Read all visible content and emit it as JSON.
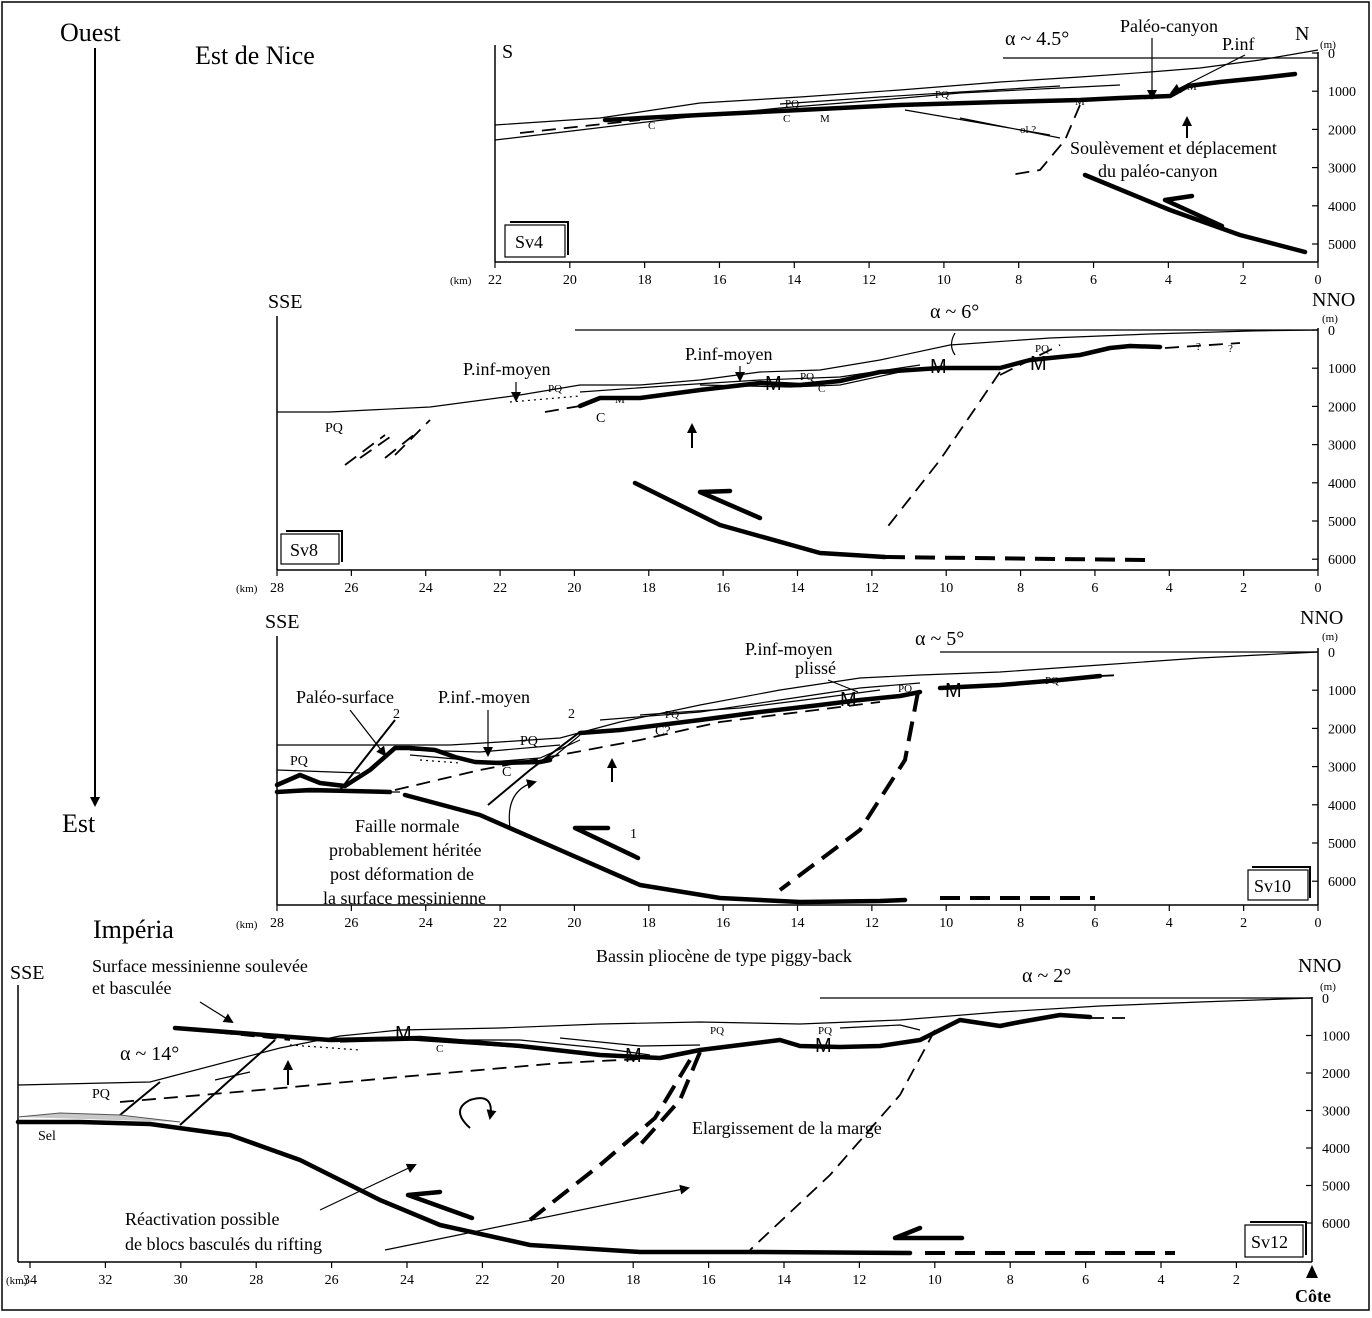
{
  "orientation": {
    "west": "Ouest",
    "east": "Est"
  },
  "regions": {
    "nice": "Est de Nice",
    "imperia": "Impéria"
  },
  "units": {
    "km": "(km)",
    "m": "(m)"
  },
  "coast": "Côte",
  "colors": {
    "line": "#000000",
    "salt": "#c8c8c8"
  },
  "panels": [
    {
      "id": "Sv4",
      "label": "Sv4",
      "left": "S",
      "right": "N",
      "km_ticks": [
        "22",
        "20",
        "18",
        "16",
        "14",
        "12",
        "10",
        "8",
        "6",
        "4",
        "2",
        "0"
      ],
      "depth_ticks": [
        "0",
        "1000",
        "2000",
        "3000",
        "4000",
        "5000"
      ],
      "alpha": "α ~ 4.5°",
      "annotations": {
        "canyon": "Paléo-canyon",
        "pinf": "P.inf",
        "uplift1": "Soulèvement et déplacement",
        "uplift2": "du paléo-canyon",
        "pq1": "PQ",
        "pq2": "PQ",
        "m1": "M",
        "m2": "M",
        "m3": "M",
        "c1": "C",
        "c2": "C",
        "ol": "ol ?"
      }
    },
    {
      "id": "Sv8",
      "label": "Sv8",
      "left": "SSE",
      "right": "NNO",
      "km_ticks": [
        "28",
        "26",
        "24",
        "22",
        "20",
        "18",
        "16",
        "14",
        "12",
        "10",
        "8",
        "6",
        "4",
        "2",
        "0"
      ],
      "depth_ticks": [
        "0",
        "1000",
        "2000",
        "3000",
        "4000",
        "5000",
        "6000"
      ],
      "alpha": "α ~ 6°",
      "annotations": {
        "pinf1": "P.inf-moyen",
        "pinf2": "P.inf-moyen",
        "pq1": "PQ",
        "pq2": "PQ",
        "pq3": "PQ",
        "pq4": "PQ",
        "m1": "M",
        "m2": "M",
        "m3": "M",
        "m4": "M",
        "c1": "C",
        "c2": "C",
        "q1": "?",
        "q2": "?"
      }
    },
    {
      "id": "Sv10",
      "label": "Sv10",
      "left": "SSE",
      "right": "NNO",
      "km_ticks": [
        "28",
        "26",
        "24",
        "22",
        "20",
        "18",
        "16",
        "14",
        "12",
        "10",
        "8",
        "6",
        "4",
        "2",
        "0"
      ],
      "depth_ticks": [
        "0",
        "1000",
        "2000",
        "3000",
        "4000",
        "5000",
        "6000"
      ],
      "alpha": "α ~ 5°",
      "annotations": {
        "paleo": "Paléo-surface",
        "pinf": "P.inf.-moyen",
        "pinf_pl1": "P.inf-moyen",
        "pinf_pl2": "plissé",
        "faille1": "Faille normale",
        "faille2": "probablement héritée",
        "faille3": "post déformation de",
        "faille4": "la surface messinienne",
        "piggy": "Bassin pliocène de type piggy-back",
        "n2a": "2",
        "n2b": "2",
        "n1": "1",
        "pq1": "PQ",
        "pq2": "PQ",
        "pq3": "PQ",
        "pq4": "PQ",
        "pq5": "PQ",
        "m1": "M",
        "m2": "M",
        "c1": "C",
        "c2": "C?"
      }
    },
    {
      "id": "Sv12",
      "label": "Sv12",
      "left": "SSE",
      "right": "NNO",
      "km_ticks": [
        "34",
        "32",
        "30",
        "28",
        "26",
        "24",
        "22",
        "20",
        "18",
        "16",
        "14",
        "12",
        "10",
        "8",
        "6",
        "4",
        "2"
      ],
      "depth_ticks": [
        "0",
        "1000",
        "2000",
        "3000",
        "4000",
        "5000",
        "6000"
      ],
      "alpha": "α ~ 2°",
      "alpha2": "α ~ 14°",
      "annotations": {
        "surf1": "Surface messinienne soulevée",
        "surf2": "et basculée",
        "sel": "Sel",
        "elarg": "Elargissement de la marge",
        "react1": "Réactivation possible",
        "react2": "de blocs basculés du rifting",
        "pq1": "PQ",
        "pq2": "PQ",
        "pq3": "PQ",
        "m1": "M",
        "m2": "M",
        "m3": "M",
        "c1": "C"
      }
    }
  ]
}
